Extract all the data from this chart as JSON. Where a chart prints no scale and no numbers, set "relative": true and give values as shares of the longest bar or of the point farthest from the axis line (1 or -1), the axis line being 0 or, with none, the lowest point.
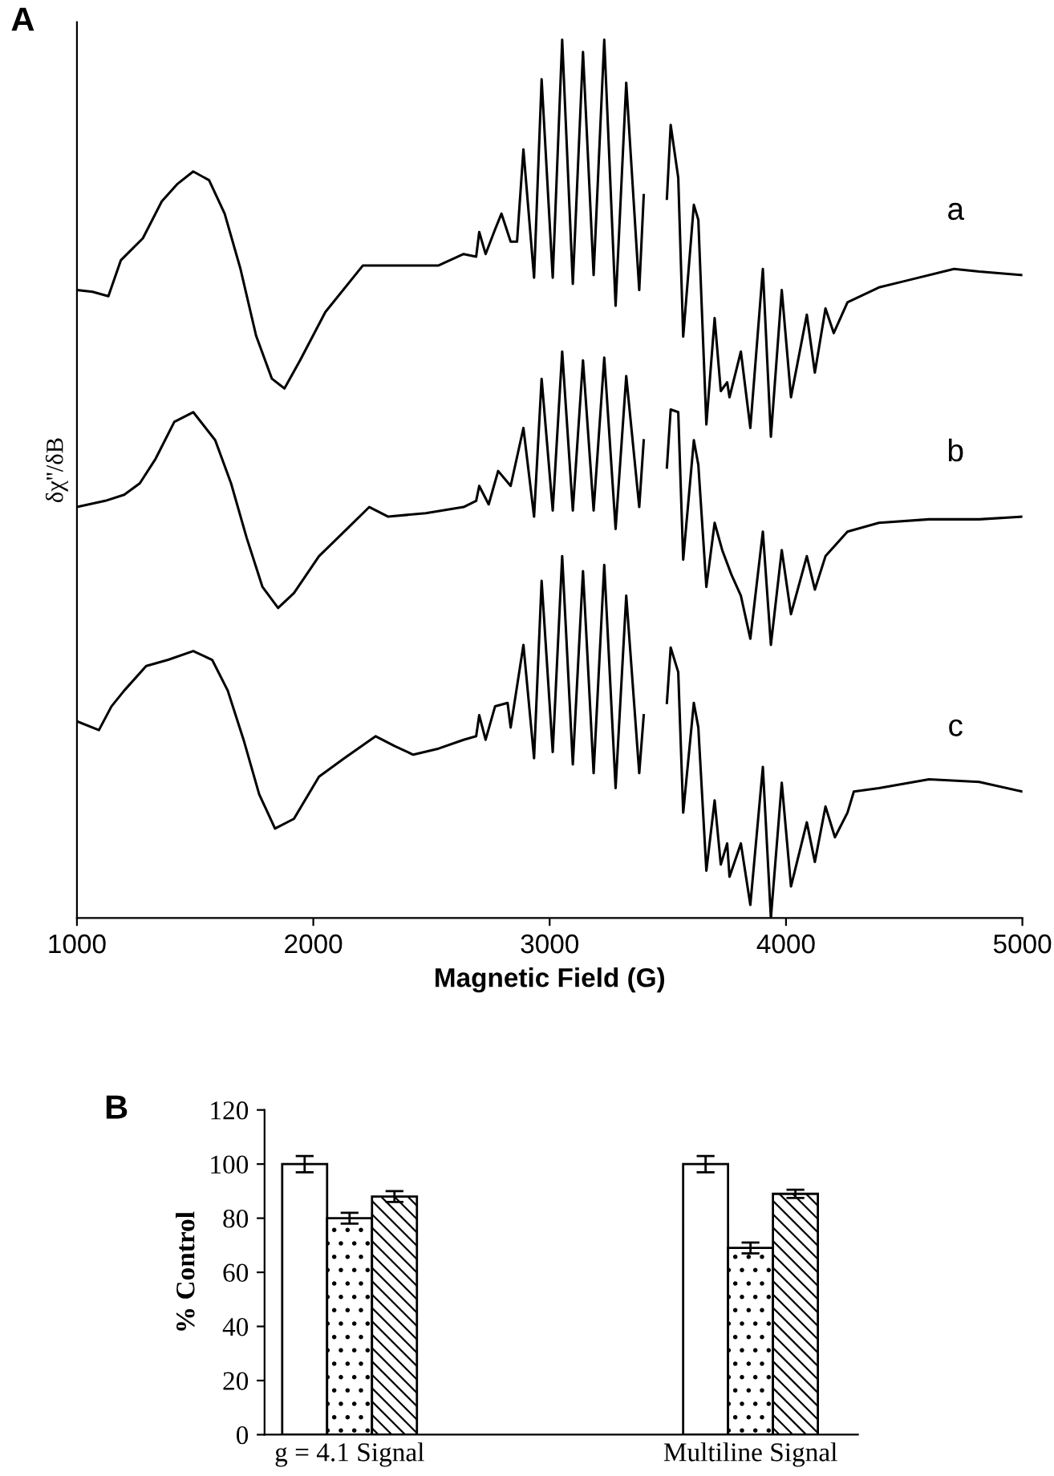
{
  "chart_data": [
    {
      "type": "line",
      "title": "A",
      "xlabel": "Magnetic Field (G)",
      "ylabel": "δχ''/δB",
      "relative": true,
      "xlim": [
        1000,
        5000
      ],
      "xticks": [
        1000,
        2000,
        3000,
        4000,
        5000
      ],
      "grid": false,
      "marker": "none",
      "line_style": "solid",
      "series": [
        {
          "name": "a",
          "color": "#000000",
          "x": [
            1000,
            1066,
            1133,
            1186,
            1279,
            1359,
            1426,
            1492,
            1559,
            1625,
            1692,
            1758,
            1825,
            1878,
            1944,
            2051,
            2210,
            2370,
            2530,
            2636,
            2689,
            2702,
            2729,
            2769,
            2796,
            2835,
            2862,
            2889,
            2934,
            2966,
            3013,
            3053,
            3098,
            3141,
            3186,
            3231,
            3279,
            3324,
            3379,
            3398,
            3450,
            3496,
            3512,
            3544,
            3565,
            3610,
            3629,
            3663,
            3698,
            3724,
            3751,
            3761,
            3809,
            3849,
            3902,
            3936,
            3982,
            4021,
            4088,
            4122,
            4167,
            4202,
            4260,
            4393,
            4499,
            4711,
            4817,
            5000
          ],
          "values": [
            0.715,
            0.713,
            0.708,
            0.749,
            0.774,
            0.816,
            0.836,
            0.85,
            0.84,
            0.802,
            0.739,
            0.663,
            0.614,
            0.603,
            0.635,
            0.69,
            0.743,
            0.743,
            0.743,
            0.756,
            0.753,
            0.781,
            0.756,
            0.784,
            0.802,
            0.77,
            0.77,
            0.875,
            0.729,
            0.955,
            0.729,
            1.0,
            0.722,
            0.986,
            0.732,
            1.0,
            0.697,
            0.951,
            0.715,
            0.823,
            null,
            0.819,
            0.903,
            0.843,
            0.662,
            0.812,
            0.795,
            0.562,
            0.683,
            0.6,
            0.61,
            0.593,
            0.645,
            0.558,
            0.739,
            0.548,
            0.715,
            0.593,
            0.687,
            0.621,
            0.694,
            0.666,
            0.701,
            0.718,
            0.725,
            0.739,
            0.736,
            0.732
          ]
        },
        {
          "name": "b",
          "color": "#000000",
          "x": [
            1000,
            1120,
            1200,
            1266,
            1333,
            1412,
            1492,
            1585,
            1652,
            1718,
            1785,
            1851,
            1918,
            2024,
            2131,
            2237,
            2317,
            2476,
            2636,
            2689,
            2702,
            2742,
            2782,
            2835,
            2889,
            2934,
            2966,
            3013,
            3053,
            3098,
            3141,
            3186,
            3231,
            3279,
            3324,
            3379,
            3398,
            3450,
            3496,
            3512,
            3544,
            3565,
            3610,
            3629,
            3663,
            3698,
            3730,
            3769,
            3809,
            3849,
            3902,
            3936,
            3982,
            4021,
            4088,
            4122,
            4167,
            4260,
            4393,
            4605,
            4817,
            5000
          ],
          "values": [
            0.468,
            0.475,
            0.482,
            0.495,
            0.523,
            0.565,
            0.576,
            0.544,
            0.495,
            0.433,
            0.377,
            0.353,
            0.37,
            0.412,
            0.44,
            0.468,
            0.457,
            0.461,
            0.468,
            0.475,
            0.492,
            0.471,
            0.509,
            0.492,
            0.558,
            0.457,
            0.614,
            0.464,
            0.645,
            0.464,
            0.635,
            0.464,
            0.638,
            0.443,
            0.617,
            0.468,
            0.544,
            null,
            0.513,
            0.579,
            0.576,
            0.408,
            0.544,
            0.516,
            0.377,
            0.45,
            0.419,
            0.391,
            0.367,
            0.318,
            0.44,
            0.311,
            0.419,
            0.346,
            0.412,
            0.374,
            0.412,
            0.44,
            0.45,
            0.454,
            0.454,
            0.457
          ]
        },
        {
          "name": "c",
          "color": "#000000",
          "x": [
            1000,
            1093,
            1146,
            1200,
            1293,
            1386,
            1492,
            1572,
            1638,
            1705,
            1771,
            1838,
            1918,
            2024,
            2131,
            2264,
            2343,
            2423,
            2530,
            2636,
            2689,
            2702,
            2729,
            2769,
            2822,
            2835,
            2889,
            2934,
            2966,
            3013,
            3053,
            3098,
            3141,
            3186,
            3231,
            3279,
            3324,
            3379,
            3398,
            3450,
            3496,
            3512,
            3544,
            3565,
            3610,
            3629,
            3663,
            3698,
            3724,
            3751,
            3761,
            3809,
            3849,
            3902,
            3936,
            3982,
            4021,
            4088,
            4122,
            4167,
            4207,
            4260,
            4287,
            4393,
            4605,
            4817,
            5000
          ],
          "values": [
            0.224,
            0.214,
            0.241,
            0.259,
            0.287,
            0.294,
            0.304,
            0.294,
            0.259,
            0.203,
            0.141,
            0.102,
            0.113,
            0.161,
            0.182,
            0.207,
            0.196,
            0.186,
            0.193,
            0.203,
            0.207,
            0.231,
            0.203,
            0.241,
            0.245,
            0.217,
            0.311,
            0.182,
            0.384,
            0.189,
            0.412,
            0.175,
            0.395,
            0.165,
            0.402,
            0.148,
            0.367,
            0.165,
            0.231,
            null,
            0.245,
            0.308,
            0.28,
            0.12,
            0.245,
            0.217,
            0.054,
            0.134,
            0.061,
            0.085,
            0.047,
            0.085,
            0.015,
            0.172,
            0.0,
            0.154,
            0.036,
            0.109,
            0.064,
            0.127,
            0.092,
            0.12,
            0.144,
            0.148,
            0.158,
            0.155,
            0.144
          ]
        }
      ]
    },
    {
      "type": "bar",
      "title": "B",
      "ylabel": "% Control",
      "categories": [
        "g = 4.1 Signal",
        "Multiline Signal"
      ],
      "ylim": [
        0,
        120
      ],
      "yticks": [
        0,
        20,
        40,
        60,
        80,
        100,
        120
      ],
      "grid": false,
      "series": [
        {
          "color": "#ffffff",
          "values": [
            100,
            100
          ],
          "errors": [
            3,
            3
          ]
        },
        {
          "color": "#000000",
          "values": [
            80,
            69
          ],
          "errors": [
            2,
            2
          ]
        },
        {
          "color": "#000000",
          "values": [
            88,
            89
          ],
          "errors": [
            2,
            1.5
          ]
        }
      ]
    }
  ]
}
